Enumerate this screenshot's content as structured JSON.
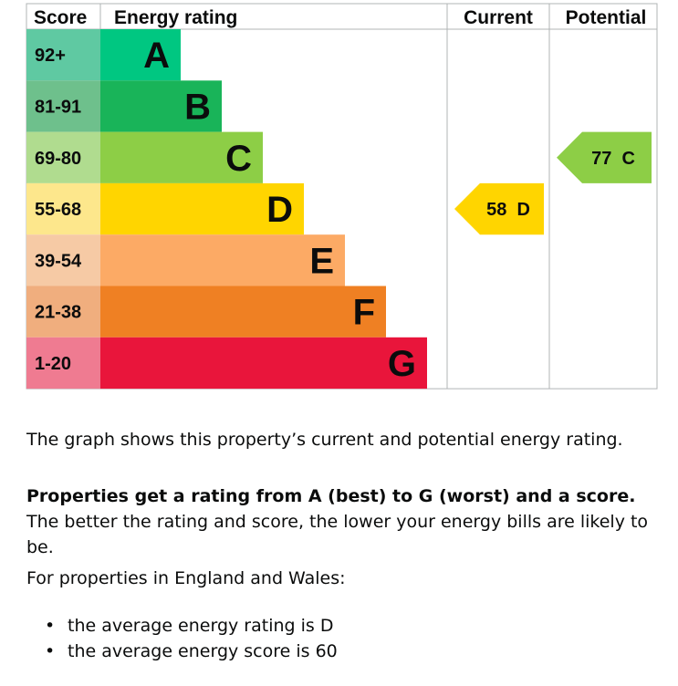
{
  "chart_data": {
    "type": "bar",
    "header": {
      "score": "Score",
      "rating": "Energy rating",
      "current": "Current",
      "potential": "Potential"
    },
    "bands": [
      {
        "score": "92+",
        "letter": "A",
        "color": "#00c781",
        "score_color": "#5fc9a2"
      },
      {
        "score": "81-91",
        "letter": "B",
        "color": "#19b459",
        "score_color": "#6ec08c"
      },
      {
        "score": "69-80",
        "letter": "C",
        "color": "#8dce46",
        "score_color": "#b0dc8f"
      },
      {
        "score": "55-68",
        "letter": "D",
        "color": "#ffd500",
        "score_color": "#fde78c"
      },
      {
        "score": "39-54",
        "letter": "E",
        "color": "#fcaa65",
        "score_color": "#f6caa5"
      },
      {
        "score": "21-38",
        "letter": "F",
        "color": "#ef8023",
        "score_color": "#f0ae7e"
      },
      {
        "score": "1-20",
        "letter": "G",
        "color": "#e9153b",
        "score_color": "#ef7b91"
      }
    ],
    "current": {
      "value": 58,
      "letter": "D",
      "label": "58  D",
      "color": "#ffd500"
    },
    "potential": {
      "value": 77,
      "letter": "C",
      "label": "77  C",
      "color": "#8dce46"
    }
  },
  "text": {
    "intro": "The graph shows this property’s current and potential energy rating.",
    "rating_bold": "Properties get a rating from A (best) to G (worst) and a score.",
    "rating_rest": " The better the rating and score, the lower your energy bills are likely to be.",
    "region": "For properties in England and Wales:",
    "bullets": [
      "the average energy rating is D",
      "the average energy score is 60"
    ]
  }
}
